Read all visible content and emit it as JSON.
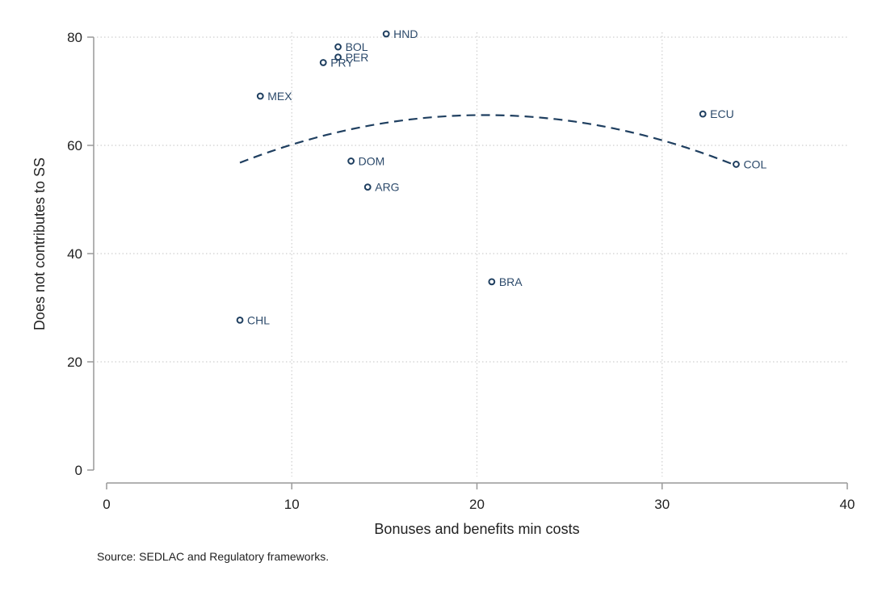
{
  "chart_data": {
    "type": "scatter",
    "title": "",
    "xlabel": "Bonuses and benefits min costs",
    "ylabel": "Does not contributes to SS",
    "xlim": [
      0,
      40
    ],
    "ylim": [
      0,
      80
    ],
    "xticks": [
      0,
      10,
      20,
      30,
      40
    ],
    "yticks": [
      0,
      20,
      40,
      60,
      80
    ],
    "grid": true,
    "points": [
      {
        "label": "HND",
        "x": 15.1,
        "y": 80.6
      },
      {
        "label": "BOL",
        "x": 12.5,
        "y": 78.2
      },
      {
        "label": "PER",
        "x": 12.5,
        "y": 76.3
      },
      {
        "label": "PRY",
        "x": 11.7,
        "y": 75.3
      },
      {
        "label": "MEX",
        "x": 8.3,
        "y": 69.1
      },
      {
        "label": "ECU",
        "x": 32.2,
        "y": 65.8
      },
      {
        "label": "COL",
        "x": 34.0,
        "y": 56.5
      },
      {
        "label": "DOM",
        "x": 13.2,
        "y": 57.1
      },
      {
        "label": "ARG",
        "x": 14.1,
        "y": 52.3
      },
      {
        "label": "BRA",
        "x": 20.8,
        "y": 34.8
      },
      {
        "label": "CHL",
        "x": 7.2,
        "y": 27.7
      }
    ],
    "fit_curve": {
      "style": "dashed",
      "x_range": [
        7.2,
        34.0
      ],
      "y_start": 56.8,
      "peak": {
        "x": 20.4,
        "y": 65.6
      },
      "y_end": 56.5
    },
    "colors": {
      "marker": "#1f3f60",
      "label": "#2c4a6b",
      "fit": "#1f3f60",
      "axis": "#999999",
      "grid": "#cfcfcf"
    }
  },
  "source_note": "Source: SEDLAC and Regulatory frameworks."
}
